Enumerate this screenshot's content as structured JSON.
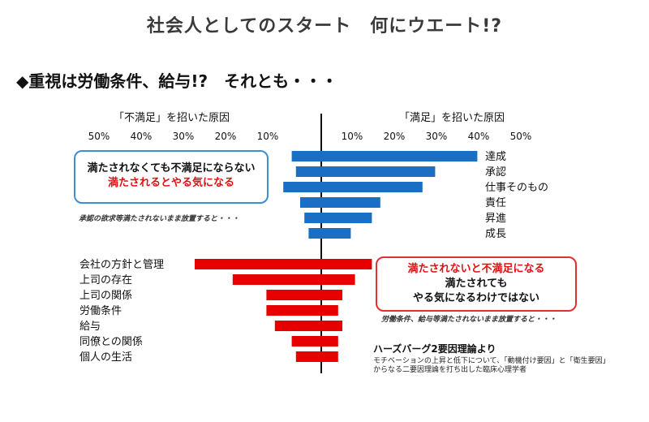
{
  "page": {
    "title": "社会人としてのスタート　何にウエート!?",
    "subtitle": "◆重視は労働条件、給与!?　それとも・・・"
  },
  "chart_data": {
    "type": "bar",
    "orientation": "diverging-horizontal",
    "left_header": "「不満足」を招いた原因",
    "right_header": "「満足」を招いた原因",
    "left_ticks": [
      "50%",
      "40%",
      "30%",
      "20%",
      "10%"
    ],
    "right_ticks": [
      "10%",
      "20%",
      "30%",
      "40%",
      "50%"
    ],
    "series": [
      {
        "name": "motivators",
        "color": "#1a6fc4",
        "categories": [
          "達成",
          "承認",
          "仕事そのもの",
          "責任",
          "昇進",
          "成長"
        ],
        "dissatisfaction": [
          7,
          6,
          9,
          5,
          4,
          3
        ],
        "satisfaction": [
          37,
          27,
          24,
          14,
          12,
          7
        ]
      },
      {
        "name": "hygiene",
        "color": "#e60000",
        "categories": [
          "会社の方針と管理",
          "上司の存在",
          "上司の関係",
          "労働条件",
          "給与",
          "同僚との関係",
          "個人の生活"
        ],
        "dissatisfaction": [
          30,
          21,
          13,
          13,
          11,
          7,
          6
        ],
        "satisfaction": [
          12,
          8,
          5,
          4,
          5,
          4,
          4
        ]
      }
    ]
  },
  "callouts": {
    "motivator": {
      "line1": "満たされなくても不満足にならない",
      "line2": "満たされるとやる気になる"
    },
    "hygiene": {
      "line1": "満たされないと不満足になる",
      "line2": "満たされても",
      "line3": "やる気になるわけではない"
    }
  },
  "notes": {
    "motivator": "承認の欲求等満たされないまま放置すると・・・",
    "hygiene": "労働条件、給与等満たされないまま放置すると・・・"
  },
  "source": {
    "title": "ハーズバーグ2要因理論より",
    "text": "モチベーションの上昇と低下について、「動機付け要因」と「衛生要因」からなる二要因理論を打ち出した臨床心理学者"
  }
}
